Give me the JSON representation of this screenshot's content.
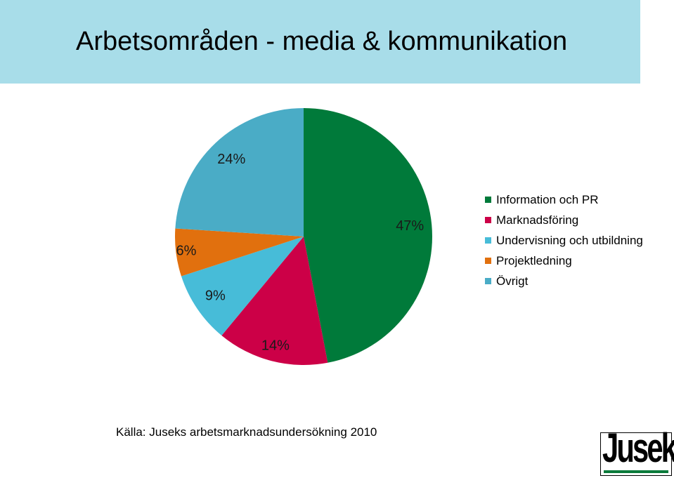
{
  "title": "Arbetsområden - media & kommunikation",
  "chart_data": {
    "type": "pie",
    "title": "Arbetsområden - media & kommunikation",
    "slices": [
      {
        "label": "Information och PR",
        "value": 47,
        "display": "47%",
        "color": "#007a3a"
      },
      {
        "label": "Marknadsföring",
        "value": 14,
        "display": "14%",
        "color": "#cc0047"
      },
      {
        "label": "Undervisning och utbildning",
        "value": 9,
        "display": "9%",
        "color": "#47bcd8"
      },
      {
        "label": "Projektledning",
        "value": 6,
        "display": "6%",
        "color": "#e1700e"
      },
      {
        "label": "Övrigt",
        "value": 24,
        "display": "24%",
        "color": "#4aacc6"
      }
    ],
    "legend_position": "right"
  },
  "source": "Källa: Juseks arbetsmarknadsundersökning 2010",
  "logo": {
    "text": "Jusek"
  }
}
